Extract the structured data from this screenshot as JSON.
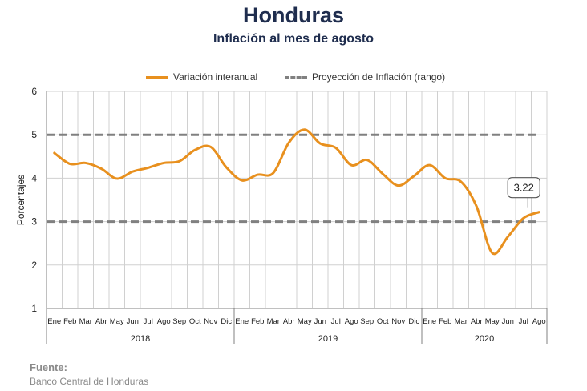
{
  "chart_data": {
    "type": "line",
    "title": "Honduras",
    "subtitle": "Inflación al mes de agosto",
    "ylabel": "Porcentajes",
    "xlabel": "",
    "ylim": [
      1,
      6
    ],
    "yticks": [
      1,
      2,
      3,
      4,
      5,
      6
    ],
    "grid": true,
    "legend_position": "top-center",
    "categories": [
      "Ene",
      "Feb",
      "Mar",
      "Abr",
      "May",
      "Jun",
      "Jul",
      "Ago",
      "Sep",
      "Oct",
      "Nov",
      "Dic",
      "Ene",
      "Feb",
      "Mar",
      "Abr",
      "May",
      "Jun",
      "Jul",
      "Ago",
      "Sep",
      "Oct",
      "Nov",
      "Dic",
      "Ene",
      "Feb",
      "Mar",
      "Abr",
      "May",
      "Jun",
      "Jul",
      "Ago"
    ],
    "year_groups": [
      {
        "label": "2018",
        "count": 12
      },
      {
        "label": "2019",
        "count": 12
      },
      {
        "label": "2020",
        "count": 8
      }
    ],
    "series": [
      {
        "name": "Variación interanual",
        "color": "#e8901e",
        "style": "solid",
        "values": [
          4.58,
          4.33,
          4.35,
          4.22,
          3.99,
          4.15,
          4.24,
          4.35,
          4.39,
          4.65,
          4.72,
          4.25,
          3.95,
          4.08,
          4.12,
          4.82,
          5.12,
          4.8,
          4.7,
          4.3,
          4.42,
          4.1,
          3.83,
          4.05,
          4.3,
          4.0,
          3.92,
          3.35,
          2.28,
          2.65,
          3.08,
          3.22
        ]
      },
      {
        "name": "Proyección de Inflación (rango)",
        "color": "#808080",
        "style": "dashed",
        "band": [
          3,
          5
        ]
      }
    ],
    "annotations": [
      {
        "label": "3.22",
        "index": 31
      }
    ]
  },
  "source": {
    "label": "Fuente:",
    "value": "Banco Central de Honduras"
  }
}
